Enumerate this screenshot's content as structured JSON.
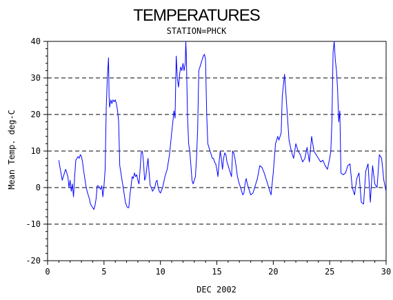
{
  "chart_data": {
    "type": "line",
    "title": "TEMPERATURES",
    "subtitle": "STATION=PHCK",
    "xlabel": "DEC 2002",
    "ylabel": "Mean Temp. deg-C",
    "xlim": [
      0,
      30
    ],
    "ylim": [
      -20,
      40
    ],
    "x_ticks": [
      0,
      5,
      10,
      15,
      20,
      25,
      30
    ],
    "x_tick_labels": [
      "0",
      "5",
      "10",
      "15",
      "20",
      "25",
      "30"
    ],
    "y_ticks": [
      40,
      30,
      20,
      10,
      0,
      -10,
      -20
    ],
    "y_tick_labels": [
      "40",
      "30",
      "20",
      "10",
      "0",
      "-10",
      "-20"
    ],
    "gridlines_y": [
      40,
      30,
      20,
      10,
      0,
      -10,
      -20
    ],
    "grid": "horizontal dashed",
    "legend": "none",
    "colors": {
      "series": "#0000ff",
      "axis": "#000000",
      "grid": "#000000"
    },
    "series": [
      {
        "x": [
          1.0,
          1.1,
          1.3,
          1.5,
          1.6,
          1.8,
          1.9,
          2.0,
          2.1,
          2.2,
          2.3,
          2.4,
          2.5,
          2.6,
          2.7,
          2.8,
          2.9,
          3.0,
          3.1,
          3.2,
          3.3,
          3.4,
          3.5,
          3.6,
          3.7,
          3.8,
          3.9,
          4.0,
          4.1,
          4.2,
          4.3,
          4.4,
          4.5,
          4.6,
          4.7,
          4.8,
          4.9,
          5.0,
          5.1,
          5.2,
          5.3,
          5.4,
          5.45,
          5.5,
          5.6,
          5.7,
          5.8,
          5.9,
          6.0,
          6.1,
          6.2,
          6.3,
          6.4,
          6.5,
          6.6,
          6.7,
          6.8,
          6.9,
          7.0,
          7.1,
          7.2,
          7.3,
          7.4,
          7.5,
          7.6,
          7.7,
          7.8,
          7.9,
          8.0,
          8.1,
          8.2,
          8.3,
          8.4,
          8.5,
          8.6,
          8.7,
          8.8,
          8.9,
          9.0,
          9.1,
          9.2,
          9.3,
          9.4,
          9.5,
          9.6,
          9.7,
          9.8,
          9.9,
          10.0,
          10.2,
          10.4,
          10.6,
          10.8,
          11.0,
          11.1,
          11.2,
          11.3,
          11.4,
          11.5,
          11.6,
          11.7,
          11.8,
          11.9,
          12.0,
          12.1,
          12.2,
          12.25,
          12.3,
          12.4,
          12.5,
          12.6,
          12.7,
          12.8,
          12.9,
          13.0,
          13.1,
          13.2,
          13.3,
          13.4,
          13.5,
          13.6,
          13.7,
          13.8,
          13.9,
          14.0,
          14.1,
          14.2,
          14.3,
          14.4,
          14.5,
          14.6,
          14.7,
          14.8,
          14.9,
          15.0,
          15.1,
          15.2,
          15.3,
          15.4,
          15.5,
          15.6,
          15.7,
          15.8,
          15.9,
          16.0,
          16.1,
          16.2,
          16.3,
          16.4,
          16.5,
          16.6,
          16.7,
          16.8,
          16.9,
          17.0,
          17.1,
          17.2,
          17.3,
          17.4,
          17.5,
          17.6,
          17.7,
          17.8,
          17.9,
          18.0,
          18.2,
          18.4,
          18.6,
          18.8,
          19.0,
          19.2,
          19.4,
          19.6,
          19.8,
          20.0,
          20.2,
          20.4,
          20.5,
          20.6,
          20.7,
          20.8,
          21.0,
          21.2,
          21.4,
          21.6,
          21.8,
          22.0,
          22.2,
          22.4,
          22.6,
          22.8,
          23.0,
          23.2,
          23.4,
          23.6,
          23.8,
          24.0,
          24.2,
          24.4,
          24.6,
          24.8,
          25.0,
          25.1,
          25.2,
          25.3,
          25.4,
          25.5,
          25.6,
          25.7,
          25.8,
          25.9,
          26.0,
          26.2,
          26.4,
          26.6,
          26.8,
          27.0,
          27.2,
          27.4,
          27.6,
          27.8,
          28.0,
          28.2,
          28.4,
          28.6,
          28.8,
          29.0,
          29.2,
          29.4,
          29.6,
          29.8,
          30.0
        ],
        "y": [
          7.5,
          5.5,
          2.0,
          4.0,
          5.0,
          3.0,
          0.0,
          2.0,
          -1.0,
          1.0,
          -2.5,
          3.0,
          7.5,
          8.0,
          8.5,
          8.0,
          9.0,
          8.5,
          7.0,
          4.5,
          2.5,
          0.5,
          -1.0,
          -2.0,
          -3.0,
          -4.5,
          -5.0,
          -5.5,
          -6.0,
          -5.0,
          -3.0,
          0.5,
          0.5,
          0.0,
          -0.5,
          0.5,
          -2.5,
          0.5,
          5.0,
          22.0,
          30.0,
          35.5,
          25.0,
          22.0,
          24.0,
          23.0,
          24.0,
          23.5,
          24.0,
          23.0,
          21.0,
          18.0,
          6.0,
          4.0,
          2.0,
          0.0,
          -2.0,
          -4.0,
          -5.0,
          -5.5,
          -5.5,
          -2.0,
          0.5,
          3.0,
          2.5,
          4.0,
          3.0,
          3.5,
          2.0,
          1.0,
          5.0,
          9.5,
          10.0,
          7.0,
          2.0,
          3.0,
          5.5,
          8.0,
          4.0,
          0.5,
          0.0,
          -1.0,
          -0.5,
          0.0,
          1.5,
          2.0,
          0.0,
          -1.0,
          -1.5,
          0.0,
          3.0,
          5.0,
          9.0,
          15.0,
          18.0,
          21.0,
          19.0,
          36.0,
          30.0,
          27.5,
          31.0,
          33.0,
          32.0,
          34.0,
          32.0,
          34.0,
          40.0,
          36.0,
          20.0,
          12.0,
          10.0,
          6.0,
          2.0,
          1.0,
          2.0,
          3.0,
          8.0,
          16.0,
          32.0,
          33.0,
          34.0,
          35.0,
          36.0,
          36.5,
          35.0,
          20.0,
          12.0,
          11.0,
          10.0,
          9.0,
          8.0,
          8.0,
          7.0,
          6.5,
          5.0,
          3.0,
          7.0,
          10.0,
          8.0,
          5.0,
          8.0,
          9.5,
          9.0,
          7.0,
          6.0,
          5.0,
          4.0,
          3.0,
          10.0,
          9.5,
          8.0,
          6.0,
          3.5,
          2.0,
          1.0,
          0.0,
          -1.0,
          -2.0,
          -1.5,
          1.0,
          2.5,
          1.0,
          0.0,
          -1.0,
          -2.0,
          -1.5,
          0.5,
          2.5,
          6.0,
          5.5,
          4.0,
          2.0,
          0.0,
          -2.0,
          4.0,
          12.0,
          14.0,
          13.0,
          14.0,
          15.0,
          25.0,
          31.0,
          22.0,
          13.0,
          10.0,
          8.0,
          12.0,
          10.0,
          9.0,
          7.0,
          8.0,
          11.0,
          7.0,
          14.0,
          10.0,
          9.0,
          8.0,
          7.0,
          7.5,
          6.0,
          5.0,
          8.0,
          10.0,
          18.0,
          37.0,
          40.0,
          35.0,
          32.0,
          27.0,
          18.0,
          21.0,
          4.0,
          3.5,
          4.0,
          6.0,
          6.5,
          0.0,
          -2.0,
          2.5,
          4.0,
          -4.0,
          -4.5,
          4.5,
          6.5,
          -4.0,
          6.0,
          1.0,
          0.0,
          9.0,
          8.0,
          2.0,
          -1.0
        ]
      }
    ]
  }
}
